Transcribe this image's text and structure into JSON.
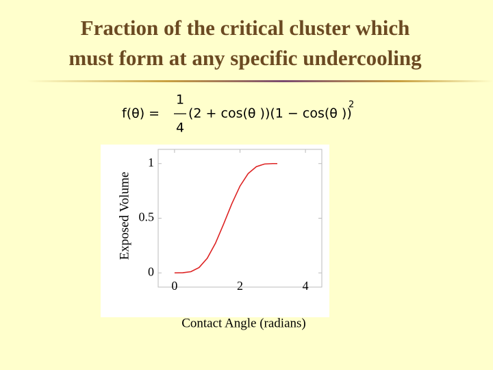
{
  "title": [
    "Fraction of the critical cluster which",
    "must form at any specific undercooling"
  ],
  "formula": {
    "lhs": "f(θ) =",
    "numerator": "1",
    "denominator": "4",
    "rhs": "(2 + cos(θ ))(1 − cos(θ ))",
    "exponent": "2"
  },
  "chart_data": {
    "type": "line",
    "x_label": "Contact Angle (radians)",
    "y_label": "Exposed Volume",
    "x": [
      0,
      0.25,
      0.5,
      0.75,
      1.0,
      1.25,
      1.5,
      1.75,
      2.0,
      2.25,
      2.5,
      2.75,
      3.0,
      3.14
    ],
    "series": [
      {
        "color": "#dd2222",
        "values": [
          0,
          0.001,
          0.011,
          0.049,
          0.134,
          0.271,
          0.447,
          0.632,
          0.794,
          0.909,
          0.972,
          0.996,
          1.0,
          1.0
        ]
      }
    ],
    "xlim": [
      -0.5,
      4.5
    ],
    "ylim": [
      -0.13,
      1.13
    ],
    "xticks": [
      0,
      2,
      4
    ],
    "yticks": [
      0,
      0.5,
      1
    ]
  }
}
